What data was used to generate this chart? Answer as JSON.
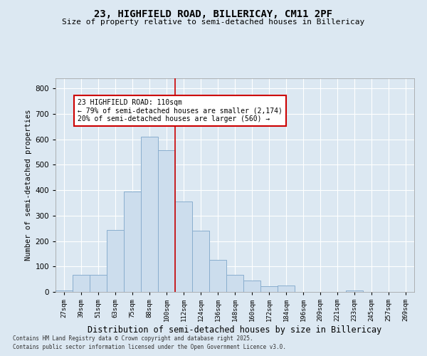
{
  "title1": "23, HIGHFIELD ROAD, BILLERICAY, CM11 2PF",
  "title2": "Size of property relative to semi-detached houses in Billericay",
  "xlabel": "Distribution of semi-detached houses by size in Billericay",
  "ylabel": "Number of semi-detached properties",
  "categories": [
    "27sqm",
    "39sqm",
    "51sqm",
    "63sqm",
    "75sqm",
    "88sqm",
    "100sqm",
    "112sqm",
    "124sqm",
    "136sqm",
    "148sqm",
    "160sqm",
    "172sqm",
    "184sqm",
    "196sqm",
    "209sqm",
    "221sqm",
    "233sqm",
    "245sqm",
    "257sqm",
    "269sqm"
  ],
  "values": [
    5,
    68,
    68,
    245,
    395,
    610,
    558,
    355,
    240,
    125,
    68,
    45,
    22,
    25,
    0,
    0,
    0,
    5,
    0,
    0,
    0
  ],
  "bar_color": "#ccdded",
  "bar_edge_color": "#89aece",
  "vline_color": "#cc0000",
  "annotation_text": "23 HIGHFIELD ROAD: 110sqm\n← 79% of semi-detached houses are smaller (2,174)\n20% of semi-detached houses are larger (560) →",
  "annotation_box_color": "#ffffff",
  "annotation_box_edge": "#cc0000",
  "ylim": [
    0,
    840
  ],
  "yticks": [
    0,
    100,
    200,
    300,
    400,
    500,
    600,
    700,
    800
  ],
  "footnote1": "Contains HM Land Registry data © Crown copyright and database right 2025.",
  "footnote2": "Contains public sector information licensed under the Open Government Licence v3.0.",
  "bg_color": "#dce8f2",
  "plot_bg_color": "#dce8f2",
  "grid_color": "#ffffff"
}
